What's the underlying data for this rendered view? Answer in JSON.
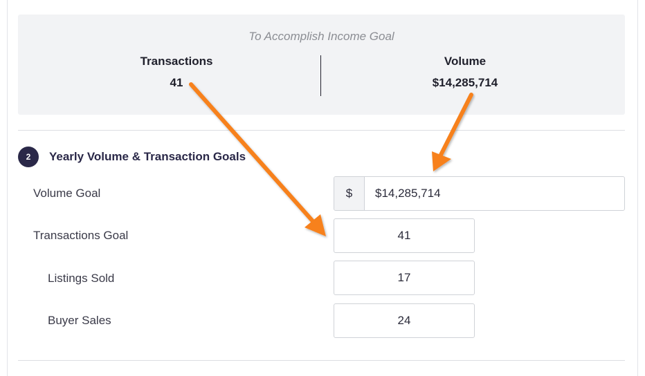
{
  "summary": {
    "caption": "To Accomplish Income Goal",
    "transactions_label": "Transactions",
    "transactions_value": "41",
    "volume_label": "Volume",
    "volume_value": "$14,285,714"
  },
  "section": {
    "step_number": "2",
    "title": "Yearly Volume & Transaction Goals"
  },
  "fields": {
    "volume_goal": {
      "label": "Volume Goal",
      "currency_symbol": "$",
      "value": "$14,285,714"
    },
    "transactions_goal": {
      "label": "Transactions Goal",
      "value": "41"
    },
    "listings_sold": {
      "label": "Listings Sold",
      "value": "17"
    },
    "buyer_sales": {
      "label": "Buyer Sales",
      "value": "24"
    }
  },
  "colors": {
    "arrow": "#f7811f",
    "badge": "#2a2848",
    "summary_bg": "#f2f3f5"
  }
}
